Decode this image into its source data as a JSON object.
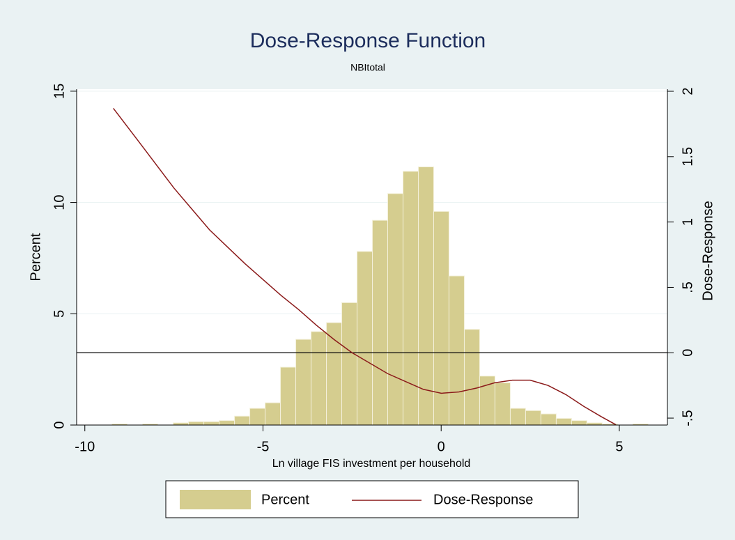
{
  "chart_data": {
    "type": "histogram",
    "title": "Dose-Response Function",
    "subtitle": "NBItotal",
    "xlabel": "Ln village FIS investment per household",
    "ylabel": "Percent",
    "y2label": "Dose-Response",
    "bins": [
      -9.24,
      -8.81,
      -8.38,
      -7.95,
      -7.52,
      -7.09,
      -6.66,
      -6.23,
      -5.8,
      -5.37,
      -4.94,
      -4.51,
      -4.08,
      -3.65,
      -3.22,
      -2.79,
      -2.36,
      -1.93,
      -1.5,
      -1.07,
      -0.64,
      -0.21,
      0.22,
      0.65,
      1.08,
      1.51,
      1.94,
      2.37,
      2.8,
      3.23,
      3.66,
      4.09,
      4.52,
      4.95,
      5.38,
      5.81,
      6.24
    ],
    "series": [
      {
        "name": "Percent",
        "color": "#d5cd8f",
        "values": [
          0.05,
          0,
          0.05,
          0,
          0.1,
          0.15,
          0.15,
          0.2,
          0.4,
          0.75,
          1.0,
          2.6,
          3.85,
          4.2,
          4.6,
          5.5,
          7.8,
          9.2,
          10.4,
          11.4,
          11.6,
          9.6,
          6.7,
          4.3,
          2.2,
          1.9,
          0.75,
          0.65,
          0.5,
          0.3,
          0.2,
          0.1,
          0.05,
          0,
          0.05,
          0
        ]
      },
      {
        "name": "Dose-Response",
        "type": "line",
        "axis": "y2",
        "color": "#8b1a1a",
        "x": [
          -9.2,
          -8.5,
          -8,
          -7.5,
          -7,
          -6.5,
          -6,
          -5.5,
          -5,
          -4.5,
          -4,
          -3.5,
          -3,
          -2.5,
          -2,
          -1.5,
          -1,
          -0.5,
          0,
          0.5,
          1,
          1.5,
          2,
          2.5,
          3,
          3.5,
          4,
          4.5,
          4.9
        ],
        "values": [
          1.87,
          1.62,
          1.44,
          1.26,
          1.1,
          0.94,
          0.81,
          0.68,
          0.56,
          0.44,
          0.33,
          0.21,
          0.1,
          0.0,
          -0.08,
          -0.16,
          -0.22,
          -0.28,
          -0.31,
          -0.3,
          -0.27,
          -0.23,
          -0.21,
          -0.21,
          -0.25,
          -0.32,
          -0.41,
          -0.49,
          -0.55
        ]
      }
    ],
    "xlim": [
      -10.23,
      6.35
    ],
    "ylim": [
      0,
      15.09
    ],
    "y2lim": [
      -0.553,
      2.016
    ],
    "xticks": [
      -10,
      -5,
      0,
      5
    ],
    "yticks": [
      0,
      5,
      10,
      15
    ],
    "y2ticks": [
      {
        "value": -0.5,
        "label": "-.5"
      },
      0,
      {
        "value": 0.5,
        "label": ".5"
      },
      1,
      1.5,
      2
    ],
    "y2_refline": 0,
    "grid": true,
    "legend": "bottom"
  }
}
